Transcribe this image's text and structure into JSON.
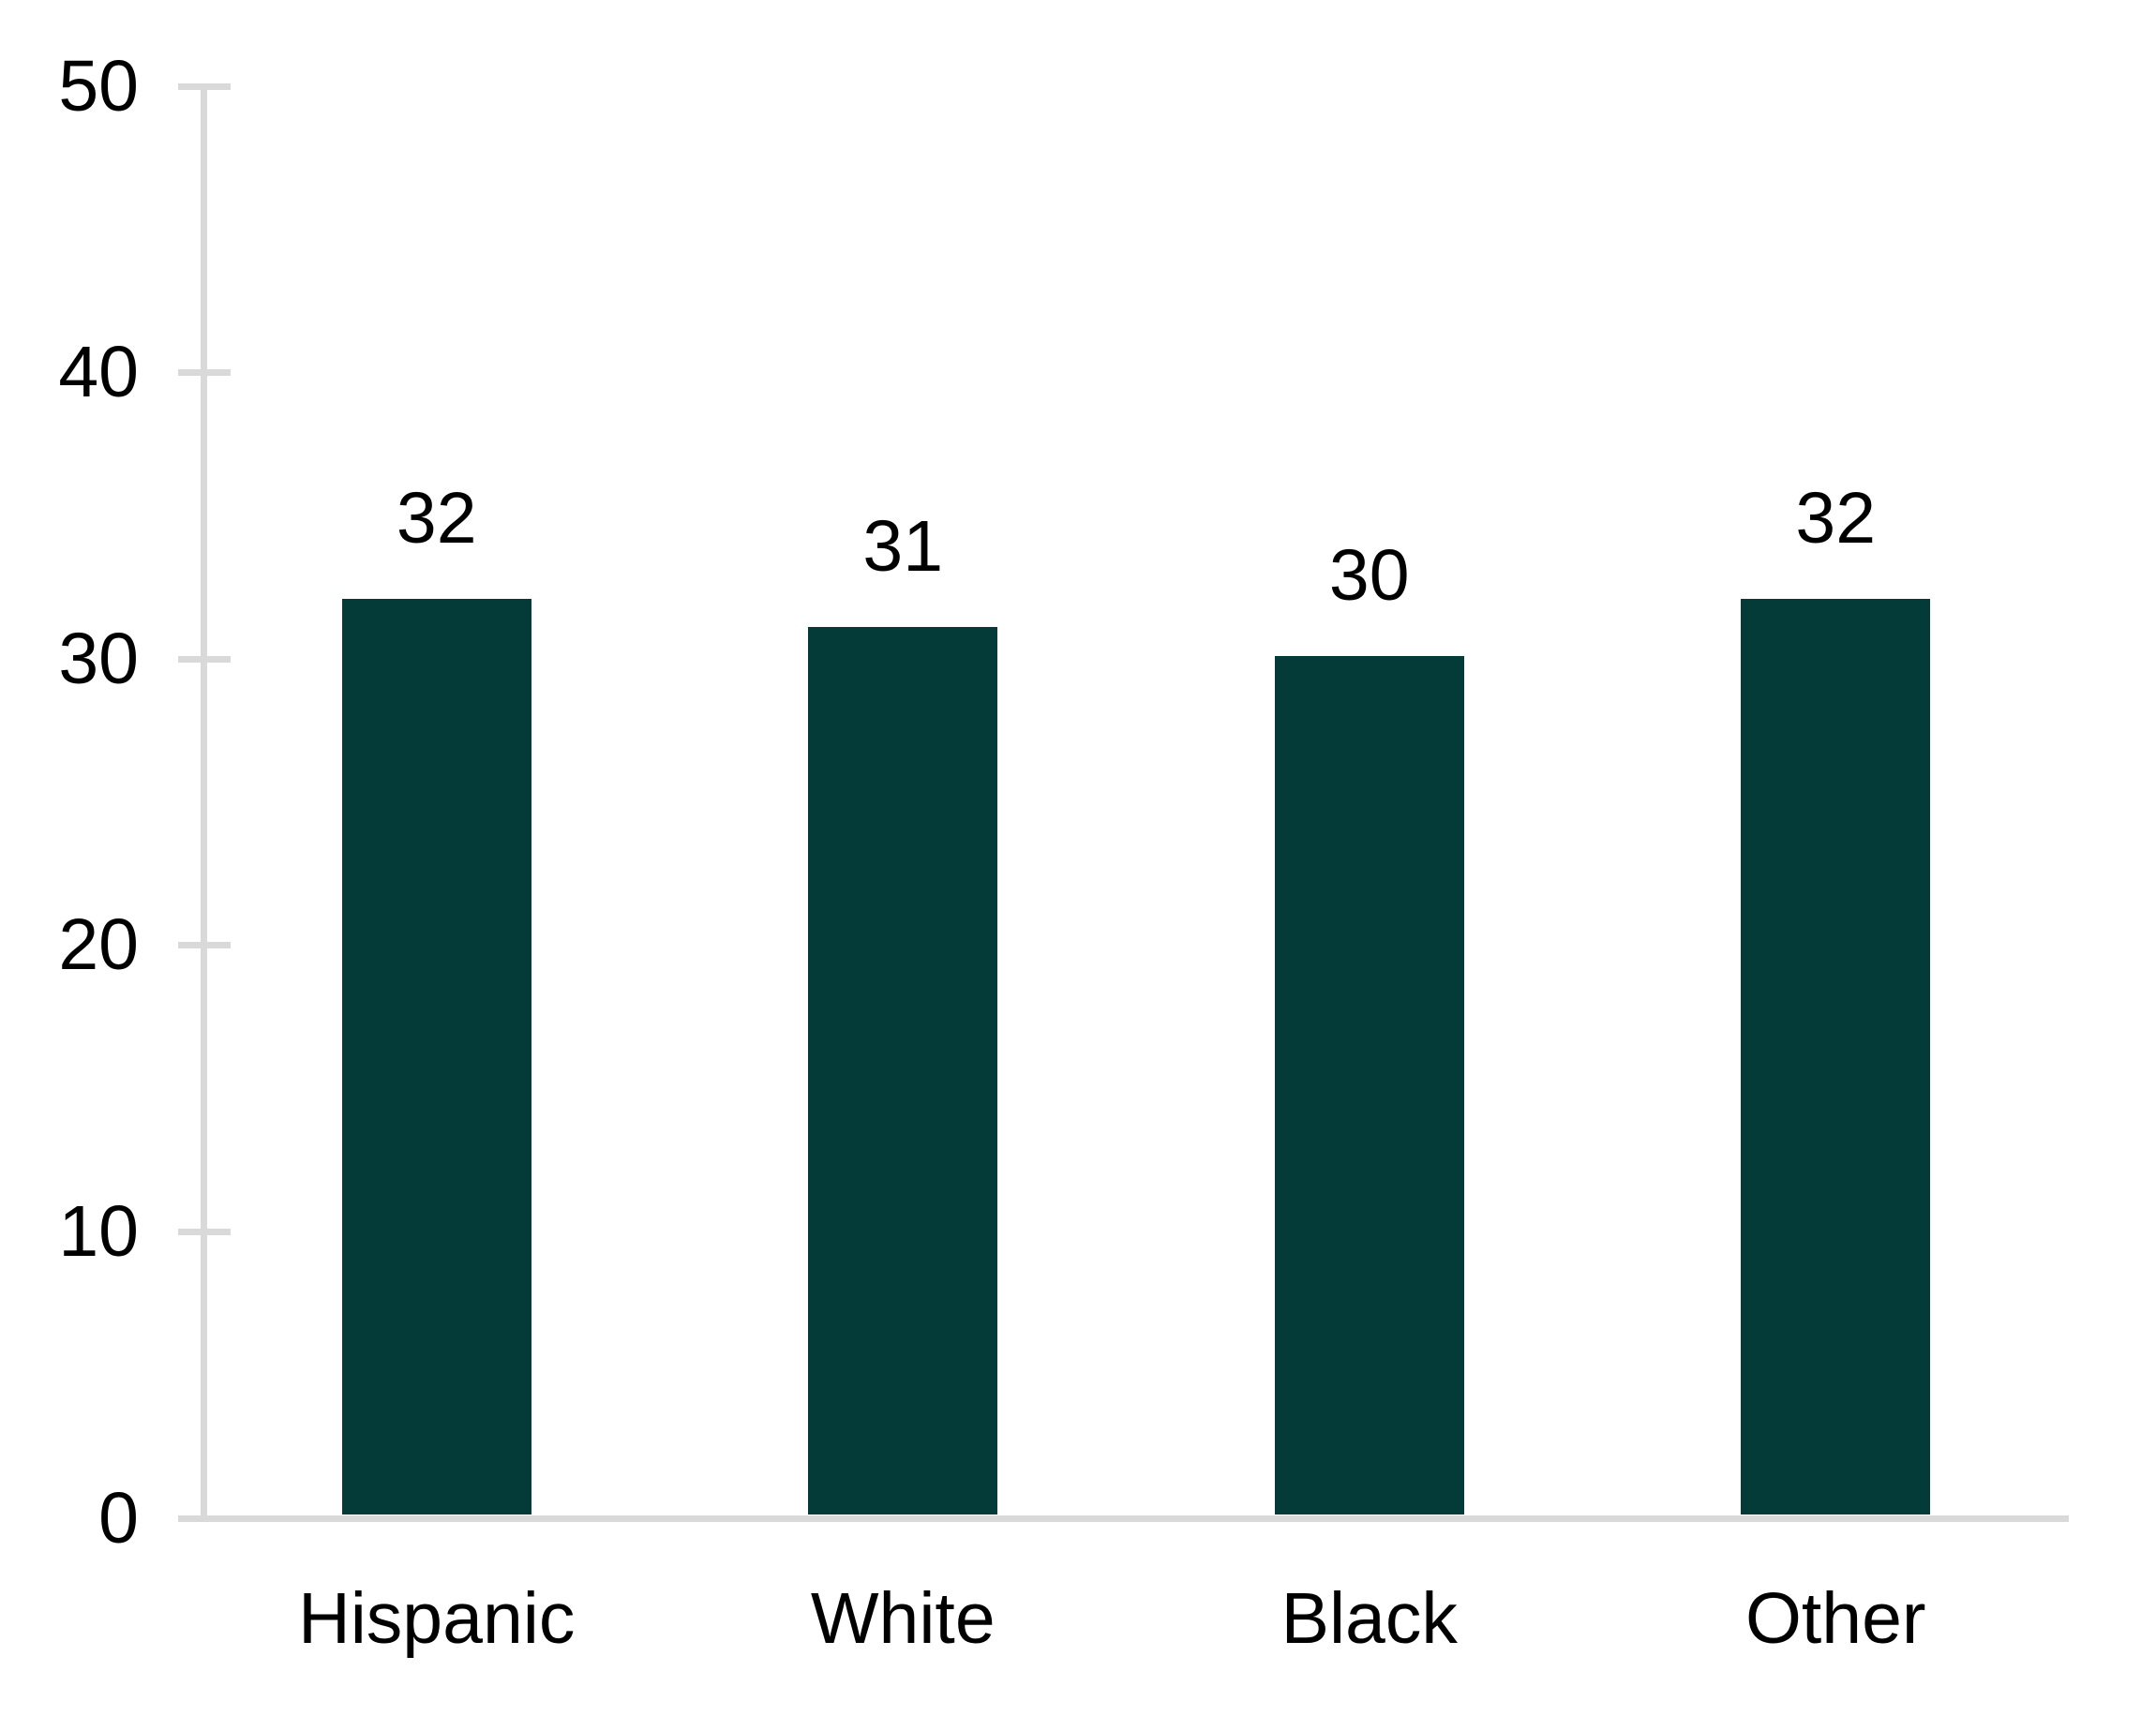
{
  "chart_data": {
    "type": "bar",
    "categories": [
      "Hispanic",
      "White",
      "Black",
      "Other"
    ],
    "values": [
      32,
      31,
      30,
      32
    ],
    "data_labels": [
      "32",
      "31",
      "30",
      "32"
    ],
    "yticks": [
      0,
      10,
      20,
      30,
      40,
      50
    ],
    "ytick_labels": [
      "0",
      "10",
      "20",
      "30",
      "40",
      "50"
    ],
    "ylim": [
      0,
      50
    ],
    "title": "",
    "xlabel": "",
    "ylabel": "",
    "grid": false,
    "legend": false,
    "colors": {
      "bar_fill": "#043B38",
      "axis_line": "#D9D9D9",
      "text": "#000000",
      "background": "#FFFFFF"
    }
  }
}
